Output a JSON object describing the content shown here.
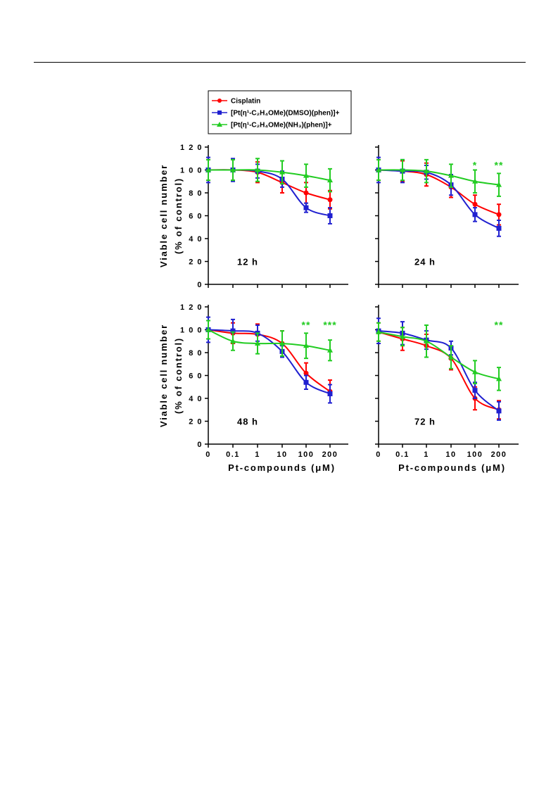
{
  "colors": {
    "Cisplatin": "#ff0000",
    "DMSO": "#2020d0",
    "NH3": "#22cc22"
  },
  "chart_data": {
    "type": "line",
    "xlabel": "Pt-compounds (μM)",
    "ylabel_line1": "Viable cell number",
    "ylabel_line2": "(% of control)",
    "categories": [
      "0",
      "0.1",
      "1",
      "10",
      "100",
      "200"
    ],
    "yticks": [
      0,
      20,
      40,
      60,
      80,
      100,
      120
    ],
    "ytick_labels": [
      "0",
      "2 0",
      "4 0",
      "6 0",
      "8 0",
      "1 0 0",
      "1 2 0"
    ],
    "ylim": [
      0,
      120
    ],
    "legend": {
      "position": "top-left",
      "entries": [
        {
          "key": "Cisplatin",
          "text": "Cisplatin"
        },
        {
          "key": "DMSO",
          "text": "[Pt(η¹-C₂H₄OMe)(DMSO)(phen)]+"
        },
        {
          "key": "NH3",
          "text": "[Pt(η¹-C₂H₄OMe)(NH₃)(phen)]+"
        }
      ]
    },
    "panels": [
      {
        "label": "12 h",
        "series": [
          {
            "key": "Cisplatin",
            "values": [
              100,
              100,
              98,
              89,
              80,
              74
            ],
            "errors": [
              9,
              9,
              9,
              9,
              9,
              8
            ]
          },
          {
            "key": "DMSO",
            "values": [
              100,
              100,
              99,
              92,
              67,
              60
            ],
            "errors": [
              11,
              10,
              6,
              7,
              4,
              7
            ]
          },
          {
            "key": "NH3",
            "values": [
              100,
              100,
              100,
              98,
              95,
              91
            ],
            "errors": [
              9,
              9,
              10,
              10,
              10,
              10
            ]
          }
        ],
        "stars": []
      },
      {
        "label": "24 h",
        "series": [
          {
            "key": "Cisplatin",
            "values": [
              100,
              99,
              96,
              85,
              70,
              61
            ],
            "errors": [
              9,
              9,
              10,
              9,
              8,
              9
            ]
          },
          {
            "key": "DMSO",
            "values": [
              100,
              99,
              98,
              87,
              61,
              49
            ],
            "errors": [
              11,
              10,
              6,
              9,
              6,
              7
            ]
          },
          {
            "key": "NH3",
            "values": [
              100,
              100,
              99,
              95,
              90,
              87
            ],
            "errors": [
              9,
              9,
              10,
              10,
              10,
              10
            ]
          }
        ],
        "stars": [
          {
            "cat": 4,
            "text": "*"
          },
          {
            "cat": 5,
            "text": "**"
          }
        ]
      },
      {
        "label": "48 h",
        "series": [
          {
            "key": "Cisplatin",
            "values": [
              100,
              97,
              96,
              88,
              62,
              46
            ],
            "errors": [
              8,
              9,
              9,
              11,
              9,
              10
            ]
          },
          {
            "key": "DMSO",
            "values": [
              100,
              99,
              97,
              81,
              54,
              44
            ],
            "errors": [
              11,
              10,
              7,
              5,
              6,
              8
            ]
          },
          {
            "key": "NH3",
            "values": [
              100,
              90,
              88,
              88,
              86,
              82
            ],
            "errors": [
              8,
              8,
              9,
              11,
              11,
              9
            ]
          }
        ],
        "stars": [
          {
            "cat": 4,
            "text": "**"
          },
          {
            "cat": 5,
            "text": "***"
          }
        ]
      },
      {
        "label": "72 h",
        "series": [
          {
            "key": "Cisplatin",
            "values": [
              98,
              92,
              86,
              75,
              40,
              30
            ],
            "errors": [
              8,
              10,
              10,
              10,
              10,
              8
            ]
          },
          {
            "key": "DMSO",
            "values": [
              99,
              97,
              91,
              84,
              47,
              29
            ],
            "errors": [
              11,
              10,
              8,
              6,
              7,
              8
            ]
          },
          {
            "key": "NH3",
            "values": [
              98,
              94,
              90,
              76,
              63,
              57
            ],
            "errors": [
              8,
              8,
              14,
              10,
              10,
              10
            ]
          }
        ],
        "stars": [
          {
            "cat": 5,
            "text": "**"
          }
        ]
      }
    ]
  }
}
